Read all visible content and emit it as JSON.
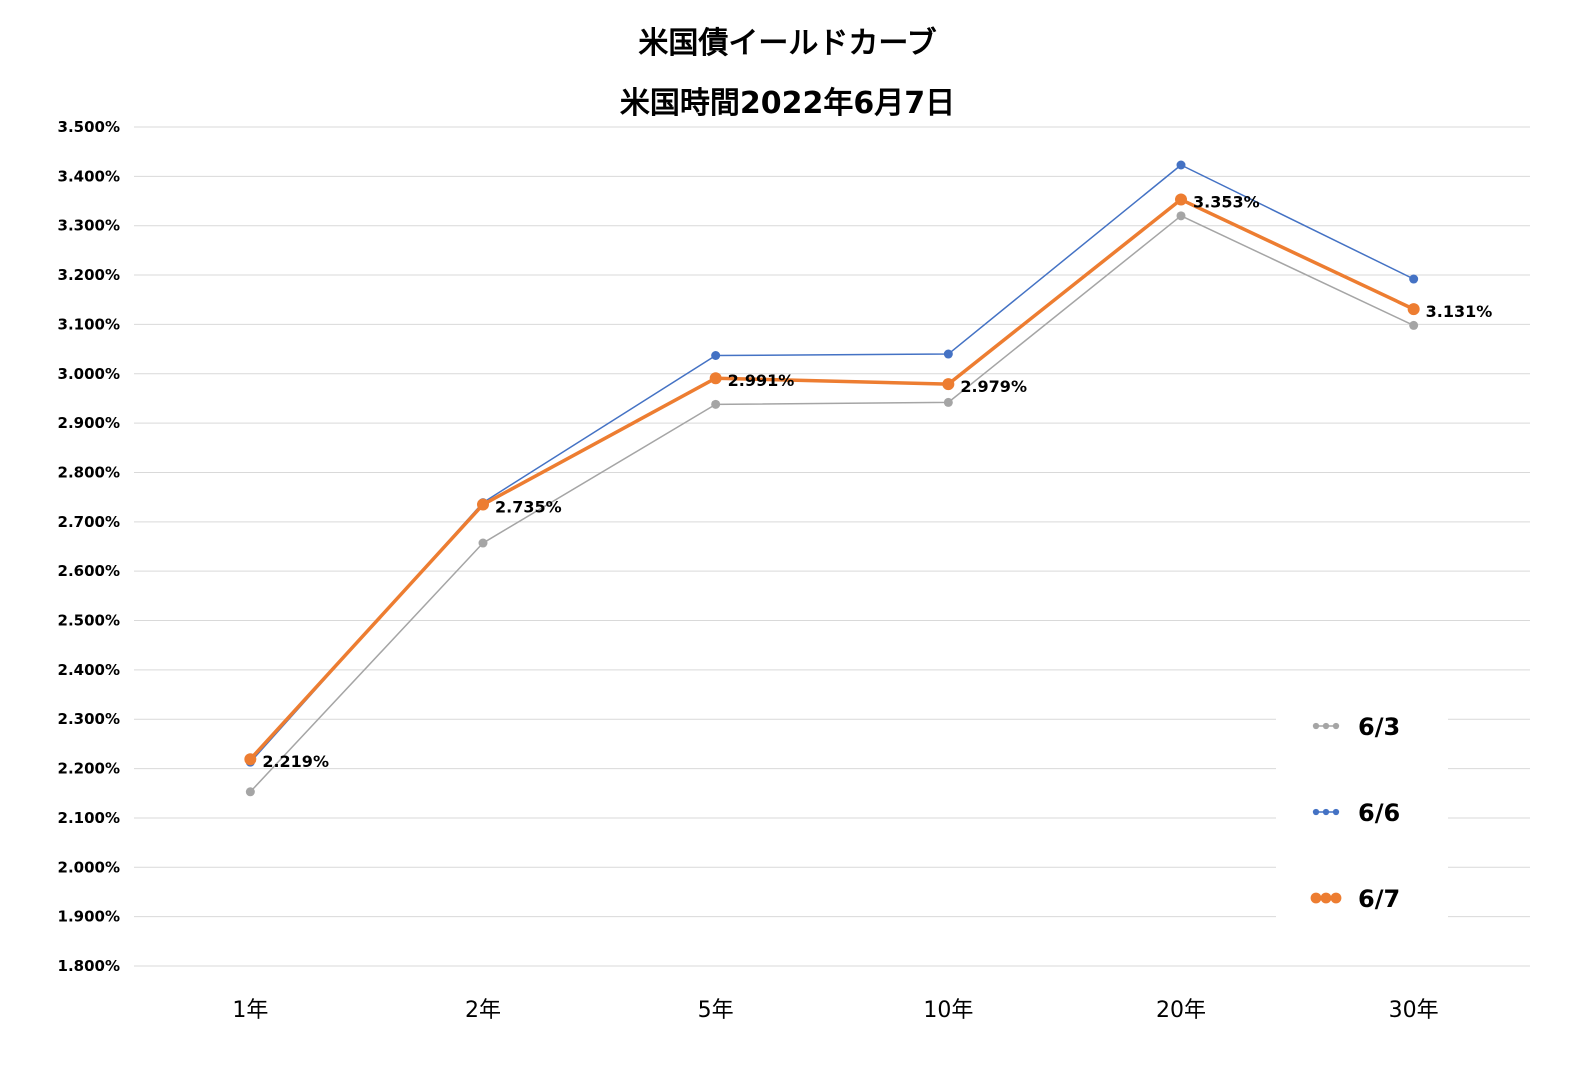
{
  "chart_data": {
    "type": "line",
    "title": "米国債イールドカーブ",
    "subtitle": "米国時間2022年6月7日",
    "categories": [
      "1年",
      "2年",
      "5年",
      "10年",
      "20年",
      "30年"
    ],
    "y_ticks": [
      "1.800%",
      "1.900%",
      "2.000%",
      "2.100%",
      "2.200%",
      "2.300%",
      "2.400%",
      "2.500%",
      "2.600%",
      "2.700%",
      "2.800%",
      "2.900%",
      "3.000%",
      "3.100%",
      "3.200%",
      "3.300%",
      "3.400%",
      "3.500%"
    ],
    "ylim": [
      1.8,
      3.5
    ],
    "grid": true,
    "legend_position": "bottom-right",
    "series": [
      {
        "name": "6/3",
        "color": "#a5a5a5",
        "values": [
          2.153,
          2.657,
          2.938,
          2.942,
          3.32,
          3.098
        ]
      },
      {
        "name": "6/6",
        "color": "#4472c4",
        "values": [
          2.213,
          2.739,
          3.037,
          3.04,
          3.423,
          3.192
        ]
      },
      {
        "name": "6/7",
        "color": "#ed7d31",
        "values": [
          2.219,
          2.735,
          2.991,
          2.979,
          3.353,
          3.131
        ],
        "data_labels": [
          "2.219%",
          "2.735%",
          "2.991%",
          "2.979%",
          "3.353%",
          "3.131%"
        ]
      }
    ]
  }
}
